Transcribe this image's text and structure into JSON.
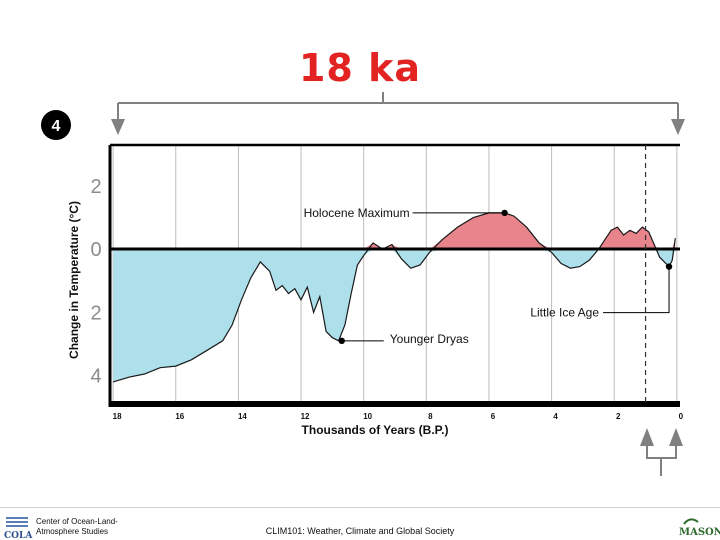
{
  "slide": {
    "title": "18 ka",
    "panel_marker": "4",
    "footer_org": "Center of Ocean-Land-Atmosphere Studies",
    "footer_course": "CLIM101: Weather, Climate and Global Society",
    "logos": {
      "left": "COLA",
      "right": "MASON"
    }
  },
  "chart_data": {
    "type": "area",
    "xlabel": "Thousands of Years (B.P.)",
    "ylabel": "Change in Temperature (°C)",
    "xlim": [
      18.1,
      -0.1
    ],
    "ylim": [
      -4.9,
      3.3
    ],
    "x_ticks": [
      "18",
      "16",
      "14",
      "12",
      "10",
      "8",
      "6",
      "4",
      "2",
      "0"
    ],
    "y_ticks": [
      {
        "label": "2",
        "value": 2
      },
      {
        "label": "0",
        "value": 0
      },
      {
        "label": "2",
        "value": -2
      },
      {
        "label": "4",
        "value": -4
      }
    ],
    "grid": true,
    "colors": {
      "warm": "#e8848c",
      "cold": "#aee0ec",
      "line": "#000000"
    },
    "series": [
      {
        "x": [
          18,
          17.5,
          17,
          16.5,
          16,
          15.5,
          15,
          14.5,
          14.2,
          13.9,
          13.6,
          13.3,
          13.0,
          12.8,
          12.6,
          12.4,
          12.2,
          12.0,
          11.8,
          11.6,
          11.4,
          11.2,
          11.0,
          10.8,
          10.6,
          10.4,
          10.2,
          10.0,
          9.7,
          9.4,
          9.1,
          8.8,
          8.5,
          8.2,
          7.9,
          7.5,
          7.0,
          6.5,
          6.0,
          5.5,
          5.2,
          4.8,
          4.4,
          4.0,
          3.7,
          3.4,
          3.1,
          2.8,
          2.5,
          2.3,
          2.1,
          1.9,
          1.7,
          1.5,
          1.3,
          1.1,
          0.9,
          0.7,
          0.55,
          0.4,
          0.25,
          0.15,
          0.05
        ],
        "y": [
          -4.2,
          -4.05,
          -3.95,
          -3.75,
          -3.7,
          -3.5,
          -3.2,
          -2.9,
          -2.4,
          -1.6,
          -0.9,
          -0.4,
          -0.7,
          -1.3,
          -1.15,
          -1.4,
          -1.25,
          -1.6,
          -1.2,
          -2.0,
          -1.5,
          -2.6,
          -2.8,
          -2.9,
          -2.4,
          -1.4,
          -0.5,
          -0.2,
          0.2,
          0.0,
          0.15,
          -0.3,
          -0.6,
          -0.5,
          -0.1,
          0.3,
          0.7,
          1.0,
          1.15,
          1.15,
          1.05,
          0.7,
          0.2,
          -0.1,
          -0.45,
          -0.6,
          -0.55,
          -0.35,
          0.0,
          0.3,
          0.6,
          0.7,
          0.45,
          0.6,
          0.5,
          0.7,
          0.55,
          0.1,
          -0.25,
          -0.4,
          -0.55,
          -0.35,
          0.35
        ]
      }
    ],
    "annotations": [
      {
        "text": "Holocene Maximum",
        "x": 5.5,
        "y": 1.15
      },
      {
        "text": "Younger Dryas",
        "x": 10.7,
        "y": -2.9
      },
      {
        "text": "Little Ice Age",
        "x": 0.25,
        "y": -0.55
      }
    ],
    "reference_line_x": 1.0
  }
}
